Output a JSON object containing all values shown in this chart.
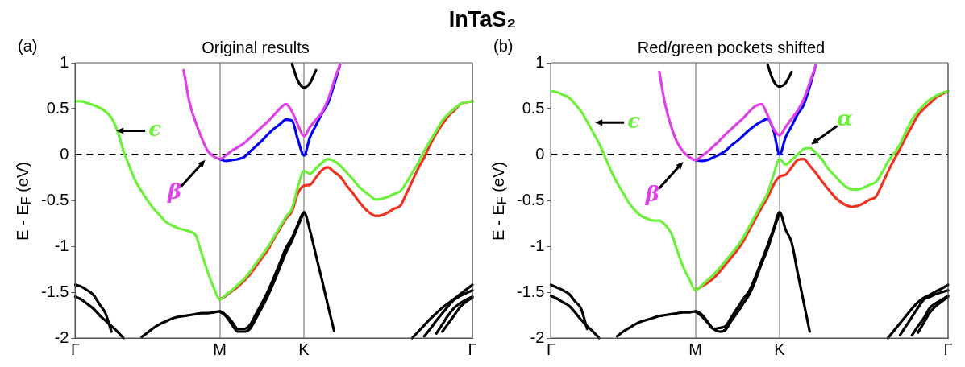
{
  "chart_data": [
    {
      "type": "line",
      "title": "Original results",
      "subtitle": "(a)",
      "ylabel": "E - E$_{F}$ (eV)",
      "legend": false,
      "grid": "x",
      "categories": [
        "Γ",
        null,
        null,
        null,
        null,
        null,
        null,
        null,
        null,
        null,
        null,
        null,
        null,
        null,
        null,
        null,
        null,
        null,
        null,
        null,
        null,
        null,
        null,
        null,
        "M",
        null,
        null,
        null,
        null,
        null,
        null,
        null,
        null,
        null,
        null,
        null,
        null,
        null,
        "K",
        null,
        null,
        null,
        null,
        null,
        null,
        null,
        null,
        null,
        null,
        null,
        null,
        null,
        null,
        null,
        null,
        null,
        null,
        null,
        null,
        null,
        null,
        null,
        null,
        null,
        null,
        null,
        "Γ"
      ],
      "ylim": [
        -2,
        1
      ],
      "yticks": [
        -2,
        -1.5,
        -1,
        -0.5,
        0,
        0.5,
        1
      ],
      "ref_lines": [
        {
          "axis": "y",
          "value": 0,
          "color": "#000000",
          "line_style": "dashed"
        }
      ],
      "annotations": [
        "InTaS₂",
        "ϵ",
        "β"
      ],
      "series": [
        {
          "color": "#6cf03c",
          "values": [
            0.58,
            0.58,
            0.56,
            0.54,
            0.51,
            0.47,
            0.4,
            0.26,
            0.04,
            -0.13,
            -0.29,
            -0.4,
            -0.5,
            -0.59,
            -0.66,
            -0.73,
            -0.77,
            -0.8,
            -0.82,
            -0.84,
            -0.88,
            -1.08,
            -1.28,
            -1.45,
            -1.58,
            -1.53,
            -1.48,
            -1.42,
            -1.36,
            -1.28,
            -1.19,
            -1.1,
            -1.01,
            -0.9,
            -0.79,
            -0.68,
            -0.59,
            -0.35,
            -0.18,
            -0.21,
            -0.15,
            -0.09,
            -0.05,
            -0.07,
            -0.12,
            -0.19,
            -0.26,
            -0.34,
            -0.4,
            -0.45,
            -0.49,
            -0.48,
            -0.46,
            -0.43,
            -0.4,
            -0.31,
            -0.2,
            -0.09,
            0.04,
            0.15,
            0.26,
            0.37,
            0.44,
            0.5,
            0.55,
            0.57,
            0.58
          ]
        },
        {
          "color": "#ee3322",
          "values": [
            null,
            null,
            null,
            null,
            null,
            null,
            null,
            null,
            null,
            null,
            null,
            null,
            null,
            null,
            null,
            null,
            null,
            null,
            null,
            null,
            null,
            null,
            null,
            null,
            -1.58,
            -1.54,
            -1.49,
            -1.44,
            -1.38,
            -1.31,
            -1.22,
            -1.13,
            -1.04,
            -0.92,
            -0.81,
            -0.7,
            -0.62,
            -0.42,
            -0.34,
            -0.33,
            -0.25,
            -0.17,
            -0.14,
            -0.19,
            -0.24,
            -0.33,
            -0.41,
            -0.5,
            -0.58,
            -0.64,
            -0.67,
            -0.66,
            -0.63,
            -0.59,
            -0.56,
            -0.43,
            -0.29,
            -0.15,
            -0.03,
            0.11,
            0.23,
            0.33,
            0.42,
            0.48,
            0.55,
            0.57,
            0.58
          ]
        },
        {
          "color": "#e040e8",
          "values": [
            null,
            null,
            null,
            null,
            null,
            null,
            null,
            null,
            null,
            null,
            null,
            null,
            null,
            null,
            null,
            null,
            null,
            null,
            0.92,
            0.56,
            0.35,
            0.18,
            0.04,
            -0.02,
            -0.05,
            -0.01,
            0.04,
            0.08,
            0.12,
            0.18,
            0.24,
            0.3,
            0.36,
            0.43,
            0.5,
            0.55,
            0.47,
            0.32,
            0.2,
            0.3,
            0.38,
            0.46,
            0.6,
            0.8,
            0.98,
            null,
            null,
            null,
            null,
            null,
            null,
            null,
            null,
            null,
            null,
            null,
            null,
            null,
            null,
            null,
            null,
            null,
            null,
            null,
            null,
            null,
            null
          ]
        },
        {
          "color": "#0000ee",
          "values": [
            null,
            null,
            null,
            null,
            null,
            null,
            null,
            null,
            null,
            null,
            null,
            null,
            null,
            null,
            null,
            null,
            null,
            null,
            null,
            null,
            null,
            null,
            null,
            null,
            -0.05,
            -0.07,
            -0.06,
            -0.05,
            -0.03,
            0.03,
            0.09,
            0.15,
            0.22,
            0.28,
            0.33,
            0.38,
            0.37,
            0.16,
            -0.01,
            0.19,
            0.32,
            0.45,
            0.56,
            0.76,
            0.98,
            null,
            null,
            null,
            null,
            null,
            null,
            null,
            null,
            null,
            null,
            null,
            null,
            null,
            null,
            null,
            null,
            null,
            null,
            null,
            null,
            null,
            null
          ]
        },
        {
          "color": "#000000",
          "values": [
            null,
            null,
            null,
            null,
            null,
            null,
            null,
            null,
            null,
            null,
            null,
            null,
            null,
            null,
            null,
            null,
            null,
            null,
            null,
            null,
            null,
            null,
            null,
            null,
            null,
            null,
            null,
            null,
            null,
            null,
            null,
            null,
            null,
            null,
            null,
            null,
            0.99,
            0.8,
            0.73,
            0.78,
            0.92,
            null,
            null,
            null,
            null,
            null,
            null,
            null,
            null,
            null,
            null,
            null,
            null,
            null,
            null,
            null,
            null,
            null,
            null,
            null,
            null,
            null,
            null,
            null,
            null,
            null,
            null
          ]
        },
        {
          "color": "#000000",
          "values": [
            null,
            null,
            null,
            null,
            null,
            null,
            null,
            null,
            null,
            null,
            null,
            -1.99,
            -1.94,
            -1.89,
            -1.85,
            -1.82,
            -1.79,
            -1.77,
            -1.76,
            -1.75,
            -1.74,
            -1.73,
            -1.73,
            -1.72,
            -1.71,
            -1.75,
            -1.82,
            -1.9,
            -1.9,
            -1.86,
            -1.74,
            -1.62,
            -1.49,
            -1.34,
            -1.18,
            -1.02,
            -0.91,
            -0.76,
            -0.63,
            -0.83,
            -1.1,
            -1.37,
            -1.65,
            -1.92,
            null,
            null,
            null,
            null,
            null,
            null,
            null,
            null,
            null,
            null,
            null,
            null,
            null,
            null,
            null,
            null,
            null,
            null,
            null,
            null,
            null,
            null,
            null
          ]
        },
        {
          "color": "#000000",
          "values": [
            null,
            null,
            null,
            null,
            null,
            null,
            null,
            null,
            null,
            null,
            null,
            null,
            null,
            null,
            null,
            null,
            null,
            null,
            null,
            null,
            null,
            null,
            null,
            null,
            -1.71,
            -1.76,
            -1.85,
            -1.93,
            -1.93,
            -1.9,
            -1.79,
            -1.67,
            -1.54,
            -1.39,
            -1.23,
            -1.07,
            -0.94,
            -0.78,
            -0.63,
            null,
            null,
            null,
            null,
            null,
            null,
            null,
            null,
            null,
            null,
            null,
            null,
            null,
            null,
            null,
            null,
            null,
            null,
            null,
            null,
            null,
            null,
            null,
            null,
            null,
            null,
            null,
            null
          ]
        },
        {
          "color": "#000000",
          "values": [
            -1.42,
            -1.44,
            -1.48,
            -1.53,
            -1.63,
            -1.73,
            -1.93,
            null,
            null,
            null,
            null,
            null,
            null,
            null,
            null,
            null,
            null,
            null,
            null,
            null,
            null,
            null,
            null,
            null,
            null,
            null,
            null,
            null,
            null,
            null,
            null,
            null,
            null,
            null,
            null,
            null,
            null,
            null,
            null,
            null,
            null,
            null,
            null,
            null,
            null,
            null,
            null,
            null,
            null,
            null,
            null,
            null,
            null,
            null,
            null,
            null,
            null,
            null,
            null,
            null,
            null,
            null,
            null,
            null,
            null,
            null,
            null
          ]
        },
        {
          "color": "#000000",
          "values": [
            -1.55,
            -1.58,
            -1.63,
            -1.68,
            -1.75,
            -1.81,
            -1.87,
            -1.93,
            -2,
            null,
            null,
            null,
            null,
            null,
            null,
            null,
            null,
            null,
            null,
            null,
            null,
            null,
            null,
            null,
            null,
            null,
            null,
            null,
            null,
            null,
            null,
            null,
            null,
            null,
            null,
            null,
            null,
            null,
            null,
            null,
            null,
            null,
            null,
            null,
            null,
            null,
            null,
            null,
            null,
            null,
            null,
            null,
            null,
            null,
            null,
            null,
            null,
            null,
            null,
            null,
            null,
            null,
            null,
            null,
            null,
            null,
            null
          ]
        },
        {
          "color": "#000000",
          "values": [
            null,
            null,
            null,
            null,
            null,
            null,
            null,
            null,
            null,
            null,
            null,
            null,
            null,
            null,
            null,
            null,
            null,
            null,
            null,
            null,
            null,
            null,
            null,
            null,
            null,
            null,
            null,
            null,
            null,
            null,
            null,
            null,
            null,
            null,
            null,
            null,
            null,
            null,
            null,
            null,
            null,
            null,
            null,
            null,
            null,
            null,
            null,
            null,
            null,
            null,
            null,
            null,
            null,
            null,
            null,
            null,
            -2,
            -1.93,
            -1.86,
            -1.79,
            -1.73,
            -1.67,
            -1.62,
            -1.57,
            -1.52,
            -1.47,
            -1.42
          ]
        },
        {
          "color": "#000000",
          "values": [
            null,
            null,
            null,
            null,
            null,
            null,
            null,
            null,
            null,
            null,
            null,
            null,
            null,
            null,
            null,
            null,
            null,
            null,
            null,
            null,
            null,
            null,
            null,
            null,
            null,
            null,
            null,
            null,
            null,
            null,
            null,
            null,
            null,
            null,
            null,
            null,
            null,
            null,
            null,
            null,
            null,
            null,
            null,
            null,
            null,
            null,
            null,
            null,
            null,
            null,
            null,
            null,
            null,
            null,
            null,
            null,
            null,
            null,
            -1.98,
            -1.9,
            -1.81,
            -1.73,
            -1.65,
            -1.58,
            -1.54,
            -1.51,
            -1.48
          ]
        },
        {
          "color": "#000000",
          "values": [
            null,
            null,
            null,
            null,
            null,
            null,
            null,
            null,
            null,
            null,
            null,
            null,
            null,
            null,
            null,
            null,
            null,
            null,
            null,
            null,
            null,
            null,
            null,
            null,
            null,
            null,
            null,
            null,
            null,
            null,
            null,
            null,
            null,
            null,
            null,
            null,
            null,
            null,
            null,
            null,
            null,
            null,
            null,
            null,
            null,
            null,
            null,
            null,
            null,
            null,
            null,
            null,
            null,
            null,
            null,
            null,
            null,
            null,
            null,
            null,
            -1.95,
            -1.85,
            -1.75,
            -1.67,
            -1.62,
            -1.58,
            -1.55
          ]
        },
        {
          "color": "#000000",
          "values": [
            null,
            null,
            null,
            null,
            null,
            null,
            null,
            null,
            null,
            null,
            null,
            null,
            null,
            null,
            null,
            null,
            null,
            null,
            null,
            null,
            null,
            null,
            null,
            null,
            null,
            null,
            null,
            null,
            null,
            null,
            null,
            null,
            null,
            null,
            null,
            null,
            null,
            null,
            null,
            null,
            null,
            null,
            null,
            null,
            null,
            null,
            null,
            null,
            null,
            null,
            null,
            null,
            null,
            null,
            null,
            null,
            null,
            null,
            null,
            null,
            null,
            -1.93,
            -1.84,
            -1.75,
            -1.66,
            -1.6,
            -1.56
          ]
        }
      ]
    },
    {
      "type": "line",
      "title": "Red/green pockets shifted",
      "subtitle": "(b)",
      "ylabel": "E - E$_{F}$ (eV)",
      "legend": false,
      "grid": "x",
      "categories": [
        "Γ",
        null,
        null,
        null,
        null,
        null,
        null,
        null,
        null,
        null,
        null,
        null,
        null,
        null,
        null,
        null,
        null,
        null,
        null,
        null,
        null,
        null,
        null,
        null,
        "M",
        null,
        null,
        null,
        null,
        null,
        null,
        null,
        null,
        null,
        null,
        null,
        null,
        null,
        "K",
        null,
        null,
        null,
        null,
        null,
        null,
        null,
        null,
        null,
        null,
        null,
        null,
        null,
        null,
        null,
        null,
        null,
        null,
        null,
        null,
        null,
        null,
        null,
        null,
        null,
        null,
        null,
        "Γ"
      ],
      "ylim": [
        -2,
        1
      ],
      "yticks": [
        -2,
        -1.5,
        -1,
        -0.5,
        0,
        0.5,
        1
      ],
      "ref_lines": [
        {
          "axis": "y",
          "value": 0,
          "color": "#000000",
          "line_style": "dashed"
        }
      ],
      "annotations": [
        "ϵ",
        "β",
        "α"
      ],
      "series": [
        {
          "color": "#6cf03c",
          "values": [
            0.69,
            0.68,
            0.65,
            0.62,
            0.55,
            0.47,
            0.36,
            0.24,
            0.12,
            -0.03,
            -0.18,
            -0.31,
            -0.42,
            -0.53,
            -0.61,
            -0.67,
            -0.7,
            -0.72,
            -0.72,
            -0.77,
            -0.86,
            -1.05,
            -1.23,
            -1.36,
            -1.48,
            -1.43,
            -1.37,
            -1.31,
            -1.24,
            -1.16,
            -1.08,
            -1,
            -0.9,
            -0.78,
            -0.66,
            -0.54,
            -0.42,
            -0.22,
            -0.05,
            -0.11,
            -0.06,
            0,
            0.06,
            0.07,
            0.02,
            -0.05,
            -0.15,
            -0.22,
            -0.29,
            -0.35,
            -0.38,
            -0.38,
            -0.36,
            -0.33,
            -0.3,
            -0.2,
            -0.08,
            0.01,
            0.11,
            0.25,
            0.38,
            0.47,
            0.54,
            0.6,
            0.64,
            0.67,
            0.69
          ]
        },
        {
          "color": "#ee3322",
          "values": [
            null,
            null,
            null,
            null,
            null,
            null,
            null,
            null,
            null,
            null,
            null,
            null,
            null,
            null,
            null,
            null,
            null,
            null,
            null,
            null,
            null,
            null,
            null,
            null,
            -1.48,
            -1.44,
            -1.4,
            -1.35,
            -1.28,
            -1.2,
            -1.12,
            -1.04,
            -0.94,
            -0.82,
            -0.7,
            -0.58,
            -0.47,
            -0.33,
            -0.24,
            -0.22,
            -0.14,
            -0.06,
            -0.05,
            -0.12,
            -0.2,
            -0.29,
            -0.37,
            -0.45,
            -0.51,
            -0.55,
            -0.57,
            -0.56,
            -0.53,
            -0.49,
            -0.46,
            -0.33,
            -0.19,
            -0.06,
            0.06,
            0.19,
            0.31,
            0.43,
            0.5,
            0.56,
            0.62,
            0.66,
            0.69
          ]
        },
        {
          "color": "#e040e8",
          "values": [
            null,
            null,
            null,
            null,
            null,
            null,
            null,
            null,
            null,
            null,
            null,
            null,
            null,
            null,
            null,
            null,
            null,
            null,
            0.9,
            0.54,
            0.3,
            0.13,
            0.03,
            -0.03,
            -0.06,
            -0.02,
            0.03,
            0.09,
            0.15,
            0.22,
            0.28,
            0.34,
            0.4,
            0.47,
            0.53,
            0.55,
            0.43,
            0.28,
            0.21,
            0.3,
            0.39,
            0.48,
            0.6,
            0.78,
            0.97,
            null,
            null,
            null,
            null,
            null,
            null,
            null,
            null,
            null,
            null,
            null,
            null,
            null,
            null,
            null,
            null,
            null,
            null,
            null,
            null,
            null,
            null
          ]
        },
        {
          "color": "#0000ee",
          "values": [
            null,
            null,
            null,
            null,
            null,
            null,
            null,
            null,
            null,
            null,
            null,
            null,
            null,
            null,
            null,
            null,
            null,
            null,
            null,
            null,
            null,
            null,
            null,
            null,
            -0.06,
            -0.07,
            -0.06,
            -0.03,
            0,
            0.04,
            0.1,
            0.15,
            0.21,
            0.27,
            0.32,
            0.36,
            0.39,
            0.26,
            0,
            0.19,
            0.31,
            0.44,
            0.54,
            0.74,
            0.97,
            null,
            null,
            null,
            null,
            null,
            null,
            null,
            null,
            null,
            null,
            null,
            null,
            null,
            null,
            null,
            null,
            null,
            null,
            null,
            null,
            null,
            null
          ]
        },
        {
          "color": "#000000",
          "values": [
            null,
            null,
            null,
            null,
            null,
            null,
            null,
            null,
            null,
            null,
            null,
            null,
            null,
            null,
            null,
            null,
            null,
            null,
            null,
            null,
            null,
            null,
            null,
            null,
            null,
            null,
            null,
            null,
            null,
            null,
            null,
            null,
            null,
            null,
            null,
            null,
            0.98,
            0.8,
            0.74,
            0.78,
            0.9,
            null,
            null,
            null,
            null,
            null,
            null,
            null,
            null,
            null,
            null,
            null,
            null,
            null,
            null,
            null,
            null,
            null,
            null,
            null,
            null,
            null,
            null,
            null,
            null,
            null,
            null
          ]
        },
        {
          "color": "#000000",
          "values": [
            null,
            null,
            null,
            null,
            null,
            null,
            null,
            null,
            null,
            null,
            null,
            -1.98,
            -1.93,
            -1.89,
            -1.85,
            -1.82,
            -1.8,
            -1.78,
            -1.76,
            -1.75,
            -1.74,
            -1.73,
            -1.72,
            -1.72,
            -1.71,
            -1.74,
            -1.82,
            -1.9,
            -1.89,
            -1.87,
            -1.77,
            -1.67,
            -1.57,
            -1.48,
            -1.33,
            -1.16,
            -0.99,
            -0.81,
            -0.63,
            -0.82,
            -0.96,
            -1.29,
            -1.61,
            -1.93,
            null,
            null,
            null,
            null,
            null,
            null,
            null,
            null,
            null,
            null,
            null,
            null,
            null,
            null,
            null,
            null,
            null,
            null,
            null,
            null,
            null,
            null,
            null
          ]
        },
        {
          "color": "#000000",
          "values": [
            null,
            null,
            null,
            null,
            null,
            null,
            null,
            null,
            null,
            null,
            null,
            null,
            null,
            null,
            null,
            null,
            null,
            null,
            null,
            null,
            null,
            null,
            null,
            null,
            -1.71,
            -1.76,
            -1.83,
            -1.9,
            -1.93,
            -1.91,
            -1.81,
            -1.72,
            -1.62,
            -1.52,
            -1.37,
            -1.19,
            -1.03,
            -0.83,
            -0.63,
            null,
            null,
            null,
            null,
            null,
            null,
            null,
            null,
            null,
            null,
            null,
            null,
            null,
            null,
            null,
            null,
            null,
            null,
            null,
            null,
            null,
            null,
            null,
            null,
            null,
            null,
            null,
            null
          ]
        },
        {
          "color": "#000000",
          "values": [
            -1.42,
            -1.45,
            -1.48,
            -1.52,
            -1.6,
            -1.68,
            -1.9,
            null,
            null,
            null,
            null,
            null,
            null,
            null,
            null,
            null,
            null,
            null,
            null,
            null,
            null,
            null,
            null,
            null,
            null,
            null,
            null,
            null,
            null,
            null,
            null,
            null,
            null,
            null,
            null,
            null,
            null,
            null,
            null,
            null,
            null,
            null,
            null,
            null,
            null,
            null,
            null,
            null,
            null,
            null,
            null,
            null,
            null,
            null,
            null,
            null,
            null,
            null,
            null,
            null,
            null,
            null,
            null,
            null,
            null,
            null,
            null
          ]
        },
        {
          "color": "#000000",
          "values": [
            -1.54,
            -1.57,
            -1.61,
            -1.65,
            -1.72,
            -1.8,
            -1.87,
            -1.93,
            -2,
            null,
            null,
            null,
            null,
            null,
            null,
            null,
            null,
            null,
            null,
            null,
            null,
            null,
            null,
            null,
            null,
            null,
            null,
            null,
            null,
            null,
            null,
            null,
            null,
            null,
            null,
            null,
            null,
            null,
            null,
            null,
            null,
            null,
            null,
            null,
            null,
            null,
            null,
            null,
            null,
            null,
            null,
            null,
            null,
            null,
            null,
            null,
            null,
            null,
            null,
            null,
            null,
            null,
            null,
            null,
            null,
            null,
            null
          ]
        },
        {
          "color": "#000000",
          "values": [
            null,
            null,
            null,
            null,
            null,
            null,
            null,
            null,
            null,
            null,
            null,
            null,
            null,
            null,
            null,
            null,
            null,
            null,
            null,
            null,
            null,
            null,
            null,
            null,
            null,
            null,
            null,
            null,
            null,
            null,
            null,
            null,
            null,
            null,
            null,
            null,
            null,
            null,
            null,
            null,
            null,
            null,
            null,
            null,
            null,
            null,
            null,
            null,
            null,
            null,
            null,
            null,
            null,
            null,
            null,
            null,
            -2,
            -1.92,
            -1.84,
            -1.76,
            -1.68,
            -1.61,
            -1.56,
            -1.53,
            -1.49,
            -1.46,
            -1.42
          ]
        },
        {
          "color": "#000000",
          "values": [
            null,
            null,
            null,
            null,
            null,
            null,
            null,
            null,
            null,
            null,
            null,
            null,
            null,
            null,
            null,
            null,
            null,
            null,
            null,
            null,
            null,
            null,
            null,
            null,
            null,
            null,
            null,
            null,
            null,
            null,
            null,
            null,
            null,
            null,
            null,
            null,
            null,
            null,
            null,
            null,
            null,
            null,
            null,
            null,
            null,
            null,
            null,
            null,
            null,
            null,
            null,
            null,
            null,
            null,
            null,
            null,
            null,
            null,
            -1.97,
            -1.87,
            -1.77,
            -1.67,
            -1.58,
            -1.55,
            -1.52,
            -1.5,
            -1.48
          ]
        },
        {
          "color": "#000000",
          "values": [
            null,
            null,
            null,
            null,
            null,
            null,
            null,
            null,
            null,
            null,
            null,
            null,
            null,
            null,
            null,
            null,
            null,
            null,
            null,
            null,
            null,
            null,
            null,
            null,
            null,
            null,
            null,
            null,
            null,
            null,
            null,
            null,
            null,
            null,
            null,
            null,
            null,
            null,
            null,
            null,
            null,
            null,
            null,
            null,
            null,
            null,
            null,
            null,
            null,
            null,
            null,
            null,
            null,
            null,
            null,
            null,
            null,
            null,
            null,
            null,
            -1.97,
            -1.87,
            -1.78,
            -1.67,
            -1.62,
            -1.58,
            -1.54
          ]
        },
        {
          "color": "#000000",
          "values": [
            null,
            null,
            null,
            null,
            null,
            null,
            null,
            null,
            null,
            null,
            null,
            null,
            null,
            null,
            null,
            null,
            null,
            null,
            null,
            null,
            null,
            null,
            null,
            null,
            null,
            null,
            null,
            null,
            null,
            null,
            null,
            null,
            null,
            null,
            null,
            null,
            null,
            null,
            null,
            null,
            null,
            null,
            null,
            null,
            null,
            null,
            null,
            null,
            null,
            null,
            null,
            null,
            null,
            null,
            null,
            null,
            null,
            null,
            null,
            null,
            null,
            -1.94,
            -1.83,
            -1.72,
            -1.65,
            -1.6,
            -1.55
          ]
        }
      ]
    }
  ]
}
